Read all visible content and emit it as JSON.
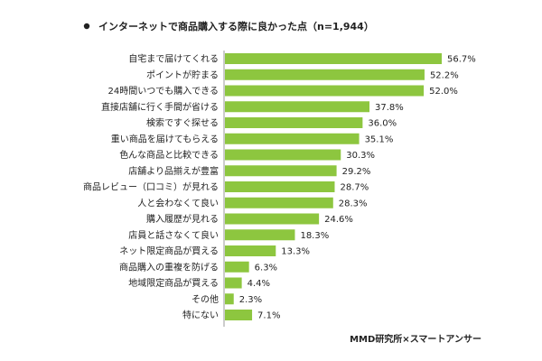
{
  "chart_data": {
    "type": "bar",
    "orientation": "horizontal",
    "title": "インターネットで商品購入する際に良かった点（n=1,944）",
    "source": "MMD研究所×スマートアンサー",
    "categories": [
      "自宅まで届けてくれる",
      "ポイントが貯まる",
      "24時間いつでも購入できる",
      "直接店舗に行く手間が省ける",
      "検索ですぐ探せる",
      "重い商品を届けてもらえる",
      "色んな商品と比較できる",
      "店舗より品揃えが豊富",
      "商品レビュー（口コミ）が見れる",
      "人と会わなくて良い",
      "購入履歴が見れる",
      "店員と話さなくて良い",
      "ネット限定商品が買える",
      "商品購入の重複を防げる",
      "地域限定商品が買える",
      "その他",
      "特にない"
    ],
    "values": [
      56.7,
      52.2,
      52.0,
      37.8,
      36.0,
      35.1,
      30.3,
      29.2,
      28.7,
      28.3,
      24.6,
      18.3,
      13.3,
      6.3,
      4.4,
      2.3,
      7.1
    ],
    "value_labels": [
      "56.7%",
      "52.2%",
      "52.0%",
      "37.8%",
      "36.0%",
      "35.1%",
      "30.3%",
      "29.2%",
      "28.7%",
      "28.3%",
      "24.6%",
      "18.3%",
      "13.3%",
      "6.3%",
      "4.4%",
      "2.3%",
      "7.1%"
    ],
    "unit": "%",
    "xlim": [
      0,
      56.7
    ],
    "grid": false,
    "legend": "none",
    "bar_color": "#8dc63f",
    "axis_color": "#999999"
  }
}
